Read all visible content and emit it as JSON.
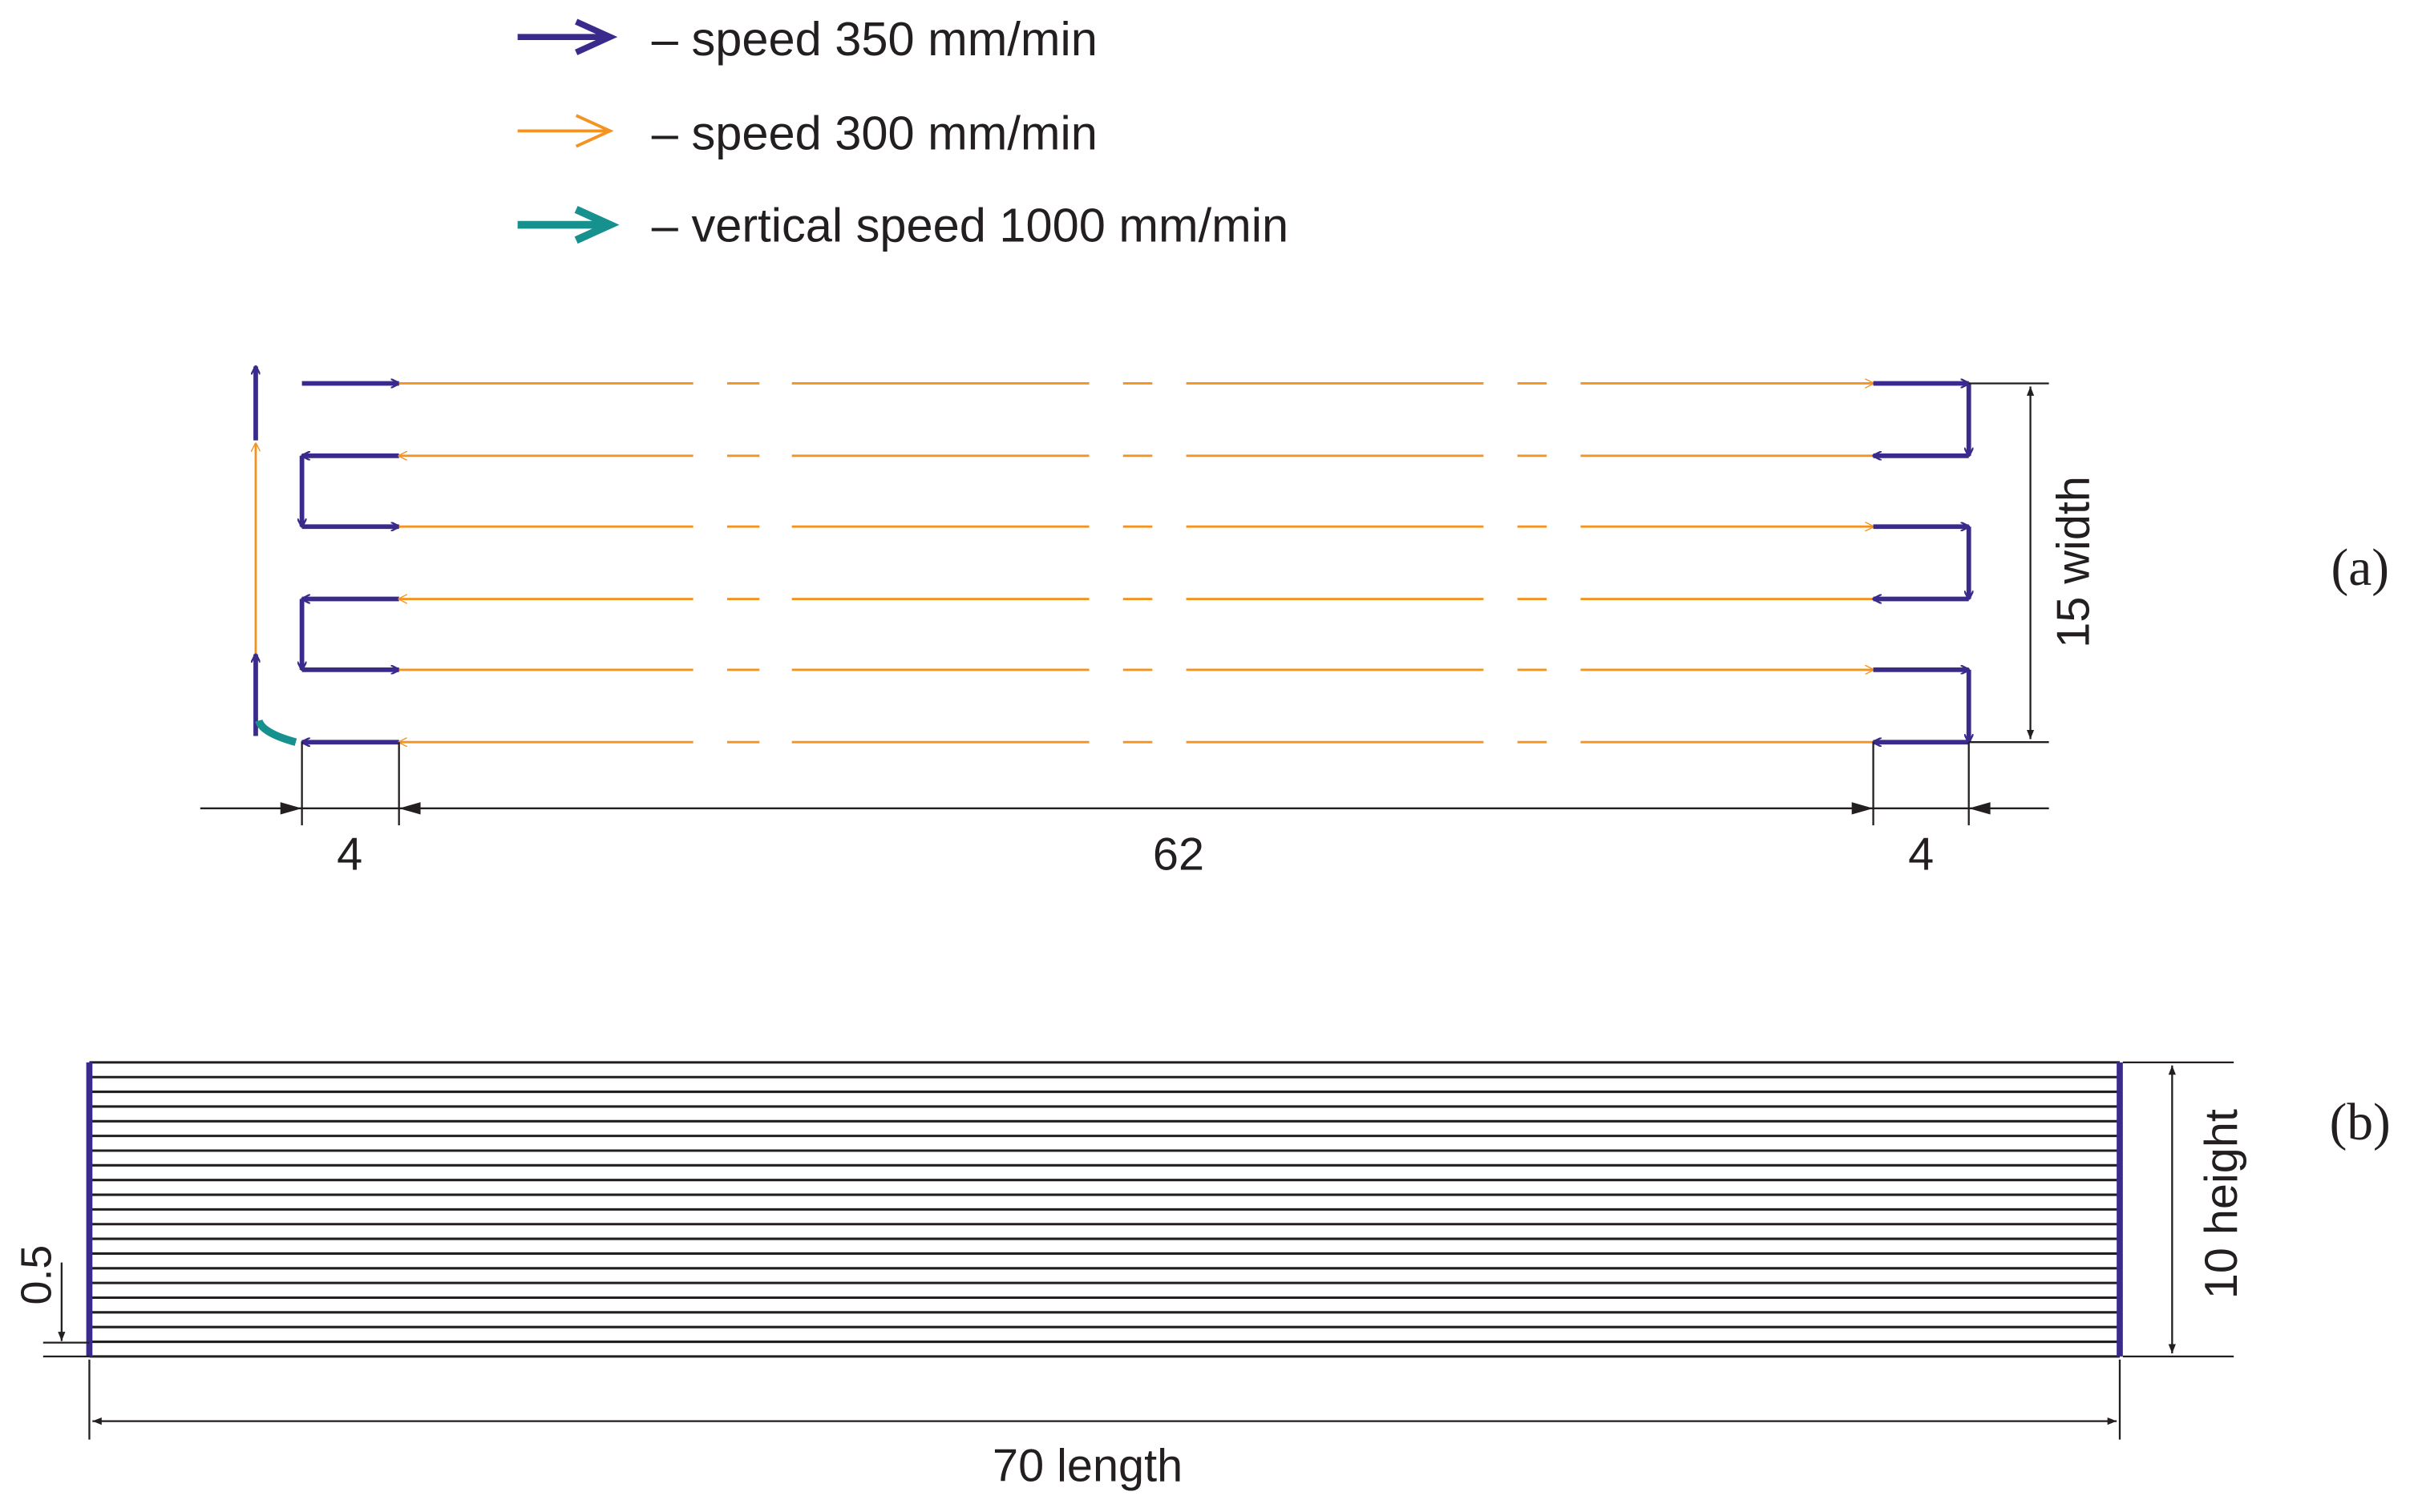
{
  "legend": {
    "items": [
      {
        "label": "– speed 350 mm/min",
        "color": "#3a2a8c"
      },
      {
        "label": "– speed 300 mm/min",
        "color": "#f39422"
      },
      {
        "label": "– vertical speed 1000 mm/min",
        "color": "#16918e"
      }
    ]
  },
  "panel_a": {
    "tag": "(a)",
    "dim_left_offset": "4",
    "dim_length": "62",
    "dim_right_offset": "4",
    "dim_width": "15 width"
  },
  "panel_b": {
    "tag": "(b)",
    "dim_layer": "0.5",
    "dim_length": "70 length",
    "dim_height": "10 height",
    "layer_count": 20
  },
  "colors": {
    "purple": "#3a2a8c",
    "orange": "#f39422",
    "teal": "#16918e",
    "ink": "#231f20"
  }
}
